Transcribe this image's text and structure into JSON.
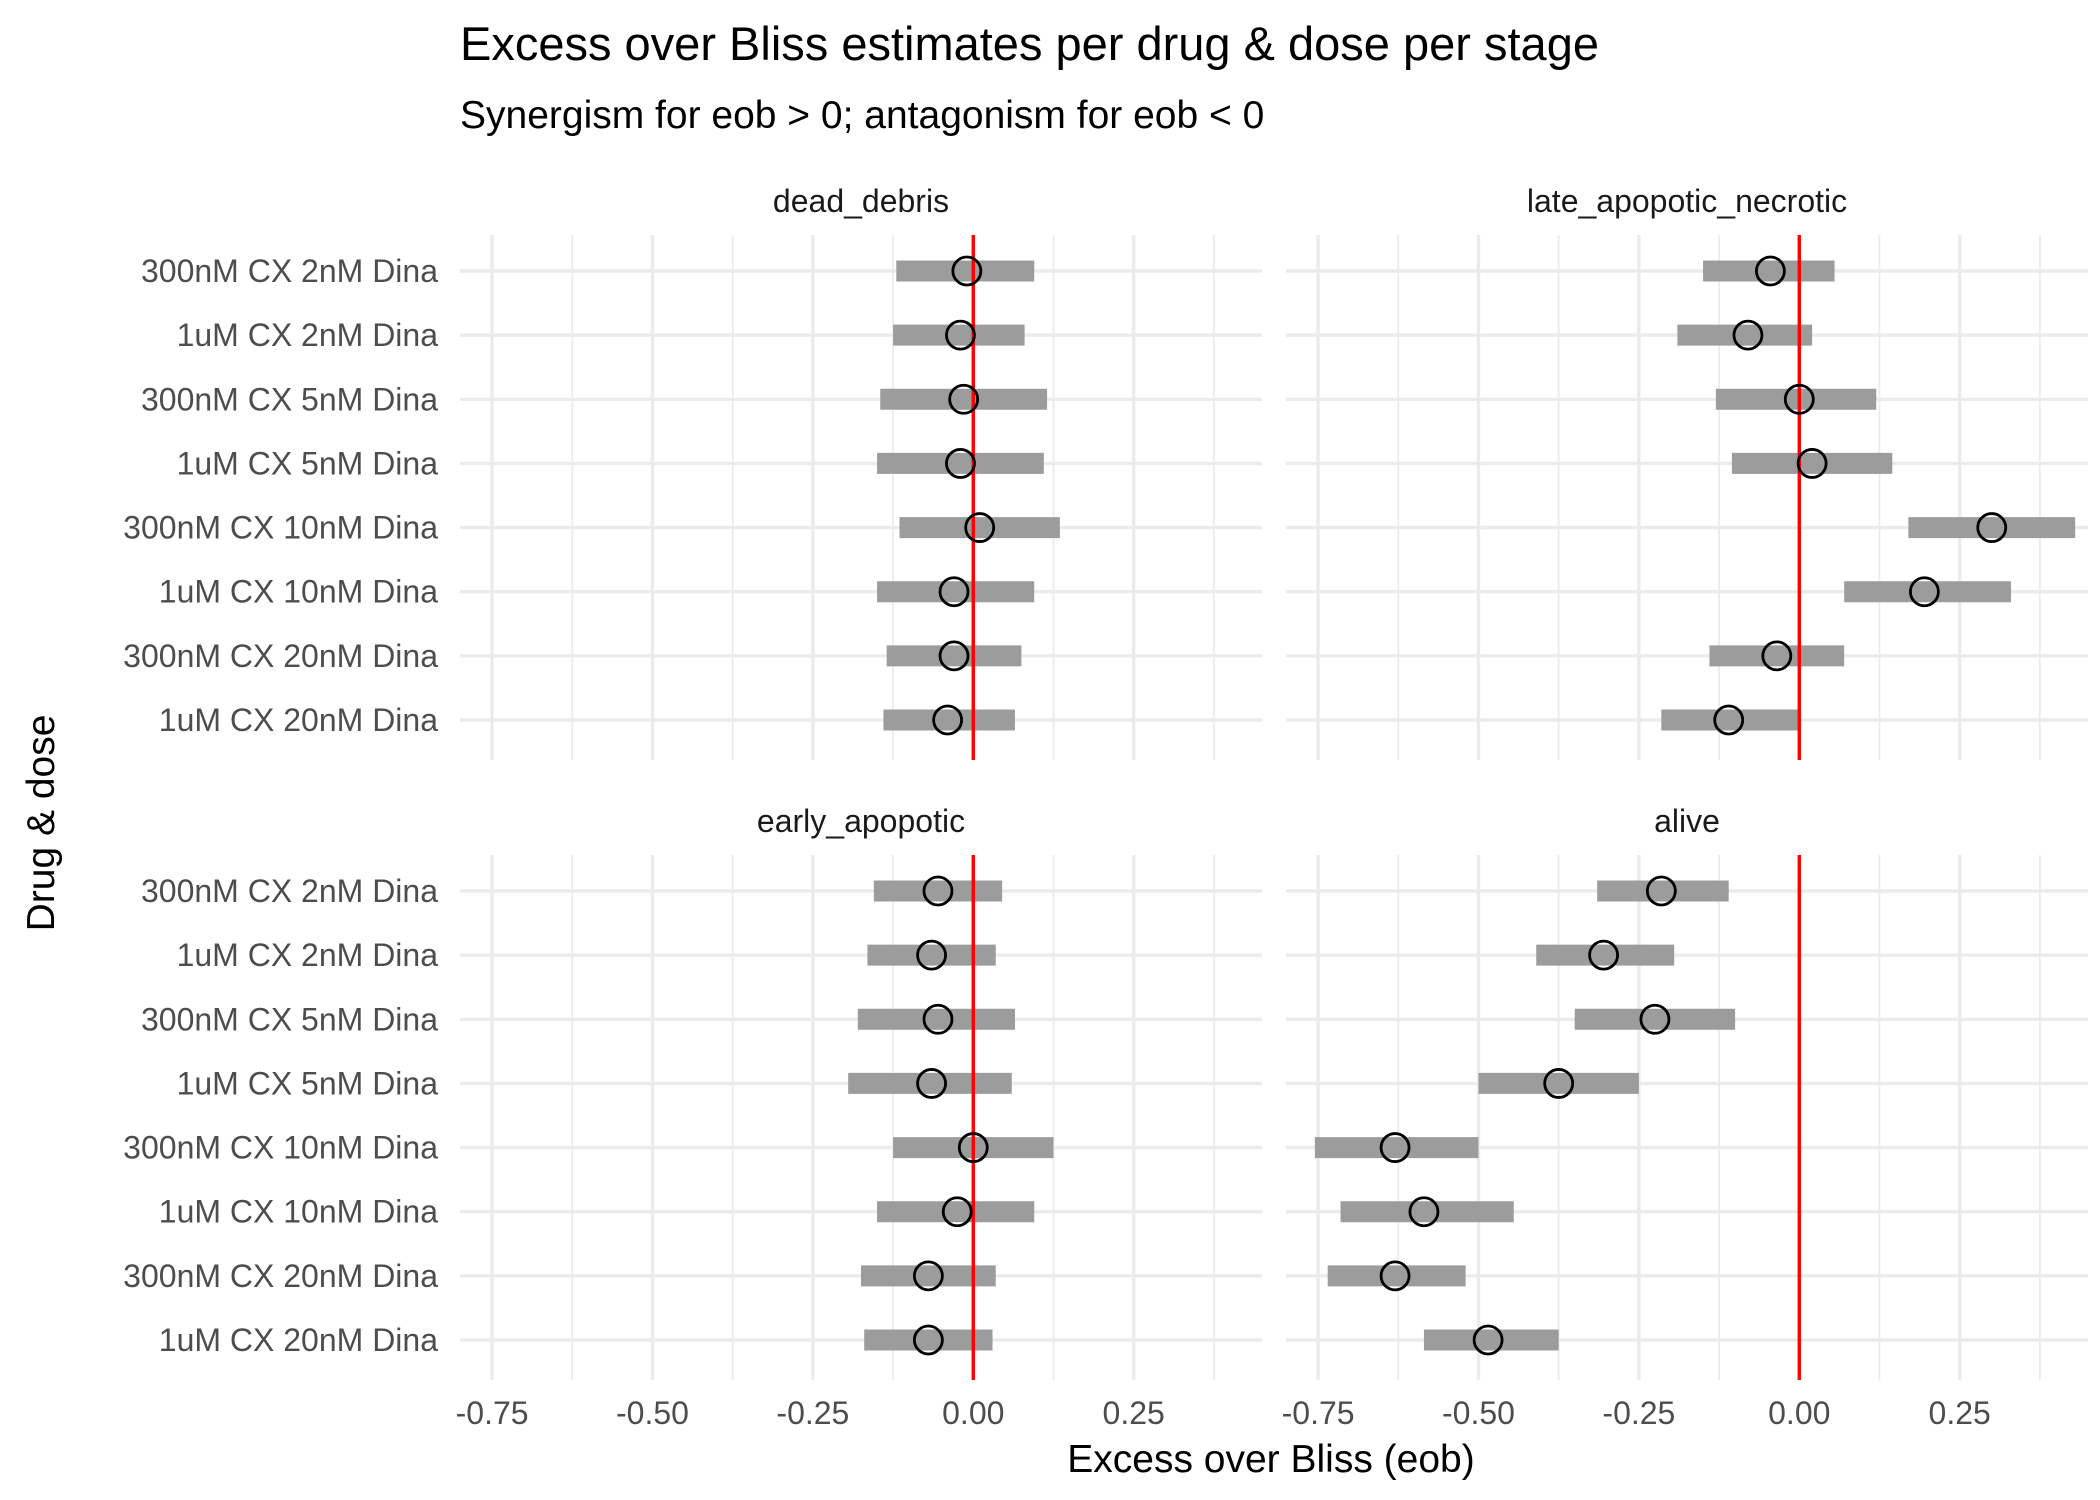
{
  "chart_data": {
    "type": "forest",
    "title": "Excess over Bliss estimates per drug & dose per stage",
    "subtitle": "Synergism for eob > 0; antagonism for eob < 0",
    "xlabel": "Excess over Bliss (eob)",
    "ylabel": "Drug & dose",
    "xlim": [
      -0.8,
      0.45
    ],
    "x_ticks": [
      -0.75,
      -0.5,
      -0.25,
      0.0,
      0.25
    ],
    "x_tick_labels": [
      "-0.75",
      "-0.50",
      "-0.25",
      "0.00",
      "0.25"
    ],
    "reference_line": {
      "x": 0,
      "color": "#ff0000"
    },
    "categories": [
      "300nM CX 2nM Dina",
      "1uM CX 2nM Dina",
      "300nM CX 5nM Dina",
      "1uM CX 5nM Dina",
      "300nM CX 10nM Dina",
      "1uM CX 10nM Dina",
      "300nM CX 20nM Dina",
      "1uM CX 20nM Dina"
    ],
    "grid": true,
    "point_style": "open circle",
    "interval_color": "#9c9c9c",
    "panels": [
      {
        "name": "dead_debris",
        "estimates": [
          -0.01,
          -0.02,
          -0.015,
          -0.02,
          0.01,
          -0.03,
          -0.03,
          -0.04
        ],
        "lower": [
          -0.12,
          -0.125,
          -0.145,
          -0.15,
          -0.115,
          -0.15,
          -0.135,
          -0.14
        ],
        "upper": [
          0.095,
          0.08,
          0.115,
          0.11,
          0.135,
          0.095,
          0.075,
          0.065
        ]
      },
      {
        "name": "late_apopotic_necrotic",
        "estimates": [
          -0.045,
          -0.08,
          0.0,
          0.02,
          0.3,
          0.195,
          -0.035,
          -0.11
        ],
        "lower": [
          -0.15,
          -0.19,
          -0.13,
          -0.105,
          0.17,
          0.07,
          -0.14,
          -0.215
        ],
        "upper": [
          0.055,
          0.02,
          0.12,
          0.145,
          0.43,
          0.33,
          0.07,
          0.0
        ]
      },
      {
        "name": "early_apopotic",
        "estimates": [
          -0.055,
          -0.065,
          -0.055,
          -0.065,
          0.0,
          -0.025,
          -0.07,
          -0.07
        ],
        "lower": [
          -0.155,
          -0.165,
          -0.18,
          -0.195,
          -0.125,
          -0.15,
          -0.175,
          -0.17
        ],
        "upper": [
          0.045,
          0.035,
          0.065,
          0.06,
          0.125,
          0.095,
          0.035,
          0.03
        ]
      },
      {
        "name": "alive",
        "estimates": [
          -0.215,
          -0.305,
          -0.225,
          -0.375,
          -0.63,
          -0.585,
          -0.63,
          -0.485
        ],
        "lower": [
          -0.315,
          -0.41,
          -0.35,
          -0.5,
          -0.755,
          -0.715,
          -0.735,
          -0.585
        ],
        "upper": [
          -0.11,
          -0.195,
          -0.1,
          -0.25,
          -0.5,
          -0.445,
          -0.52,
          -0.375
        ]
      }
    ]
  }
}
